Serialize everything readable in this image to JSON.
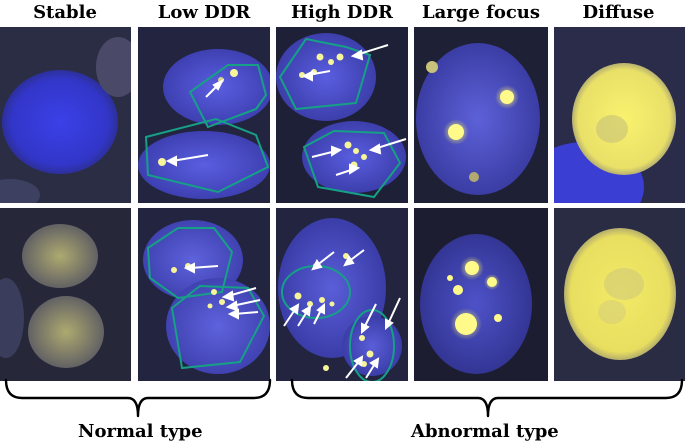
{
  "columns": [
    {
      "id": "stable",
      "title": "Stable"
    },
    {
      "id": "low-ddr",
      "title": "Low DDR"
    },
    {
      "id": "high-ddr",
      "title": "High DDR"
    },
    {
      "id": "large-focus",
      "title": "Large focus"
    },
    {
      "id": "diffuse",
      "title": "Diffuse"
    }
  ],
  "groups": {
    "normal": "Normal type",
    "abnormal": "Abnormal type"
  },
  "colors": {
    "nucleus_blue": "#3b3fd6",
    "background_dark": "#1a1a2e",
    "focus_yellow": "#f7f59a",
    "outline_green": "#16a085",
    "arrow_white": "#ffffff"
  }
}
